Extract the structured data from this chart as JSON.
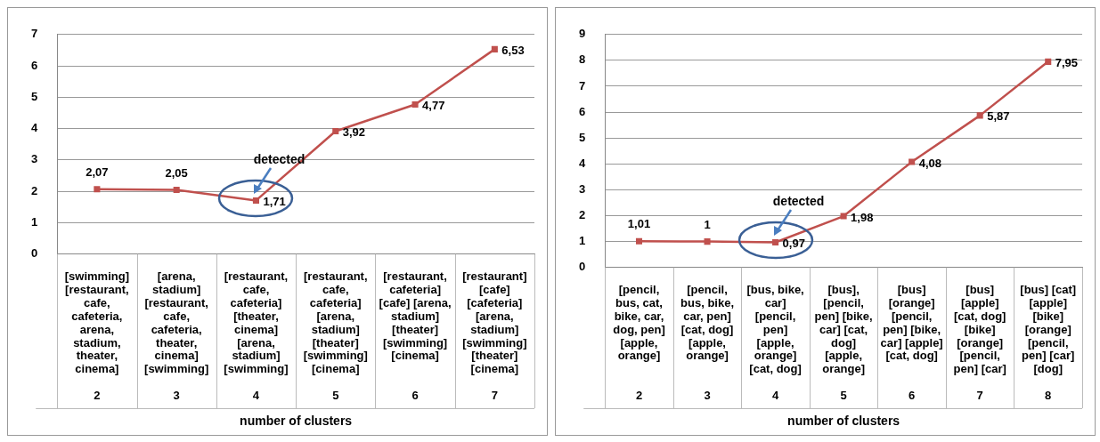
{
  "chart_data": [
    {
      "type": "line",
      "xlabel": "number of clusters",
      "categories": [
        "[swimming] [restaurant, cafe, cafeteria, arena, stadium, theater, cinema]\n2",
        "[arena, stadium] [restaurant, cafe, cafeteria, theater, cinema] [swimming]\n3",
        "[restaurant, cafe, cafeteria] [theater, cinema] [arena, stadium] [swimming]\n4",
        "[restaurant, cafe, cafeteria] [arena, stadium] [theater] [swimming] [cinema]\n5",
        "[restaurant, cafeteria] [cafe] [arena, stadium] [theater] [swimming] [cinema]\n6",
        "[restaurant] [cafe] [cafeteria] [arena, stadium] [swimming] [theater] [cinema]\n7"
      ],
      "series": [
        {
          "color": "#c0504d",
          "values": [
            2.07,
            2.05,
            1.71,
            3.92,
            4.77,
            6.53
          ],
          "value_labels": [
            "2,07",
            "2,05",
            "1,71",
            "3,92",
            "4,77",
            "6,53"
          ]
        }
      ],
      "ylim": [
        0,
        7
      ],
      "yticks": [
        0,
        1,
        2,
        3,
        4,
        5,
        6,
        7
      ],
      "grid": "y",
      "marker": "square",
      "line_style": "solid",
      "legend": false,
      "annotations": [
        {
          "text": "detected",
          "x": "[restaurant, cafe, cafeteria] [theater, cinema] [arena, stadium] [swimming]\n4",
          "y": 1.71
        }
      ]
    },
    {
      "type": "line",
      "xlabel": "number of clusters",
      "categories": [
        "[pencil, bus, cat, bike, car, dog, pen] [apple, orange]\n2",
        "[pencil, bus, bike, car, pen] [cat, dog] [apple, orange]\n3",
        "[bus, bike, car] [pencil, pen] [apple, orange] [cat, dog]\n4",
        "[bus], [pencil, pen] [bike, car] [cat, dog] [apple, orange]\n5",
        "[bus] [orange] [pencil, pen] [bike, car] [apple] [cat, dog]\n6",
        "[bus] [apple] [cat, dog] [bike] [orange] [pencil, pen] [car]\n7",
        "[bus] [cat] [apple] [bike] [orange] [pencil, pen] [car] [dog]\n8"
      ],
      "series": [
        {
          "color": "#c0504d",
          "values": [
            1.01,
            1,
            0.97,
            1.98,
            4.08,
            5.87,
            7.95
          ],
          "value_labels": [
            "1,01",
            "1",
            "0,97",
            "1,98",
            "4,08",
            "5,87",
            "7,95"
          ]
        }
      ],
      "ylim": [
        0,
        9
      ],
      "yticks": [
        0,
        1,
        2,
        3,
        4,
        5,
        6,
        7,
        8,
        9
      ],
      "grid": "y",
      "marker": "square",
      "line_style": "solid",
      "legend": false,
      "annotations": [
        {
          "text": "detected",
          "x": "[bus, bike, car] [pencil, pen] [apple, orange] [cat, dog]\n4",
          "y": 0.97
        }
      ]
    }
  ]
}
